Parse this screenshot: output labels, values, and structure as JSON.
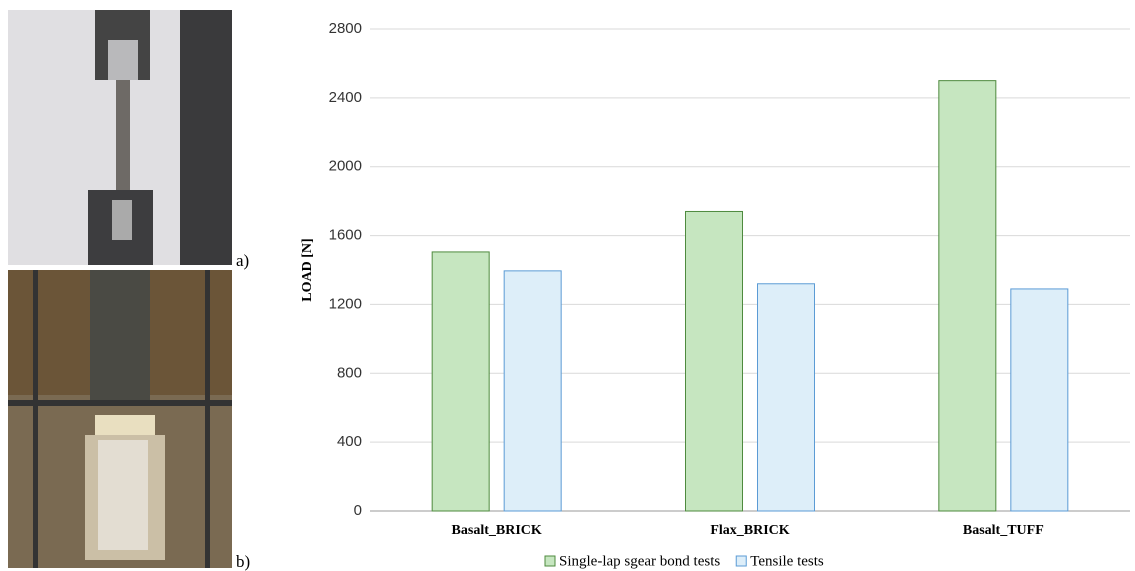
{
  "panel_labels": [
    "a)",
    "b)"
  ],
  "chart_data": {
    "type": "bar",
    "y_label": "LOAD [N]",
    "categories": [
      "Basalt_BRICK",
      "Flax_BRICK",
      "Basalt_TUFF"
    ],
    "series": [
      {
        "name": "Single-lap sgear bond tests",
        "color": "#c6e6c0",
        "values": [
          1505,
          1740,
          2500
        ]
      },
      {
        "name": "Tensile tests",
        "color": "#ddeef9",
        "values": [
          1395,
          1320,
          1290
        ]
      }
    ],
    "ylim": [
      0,
      2800
    ],
    "yticks": [
      0,
      400,
      800,
      1200,
      1600,
      2000,
      2400,
      2800
    ],
    "grid": true,
    "legend": "bottom"
  }
}
